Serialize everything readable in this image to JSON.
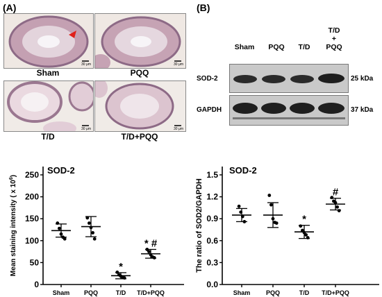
{
  "panel_a": {
    "label": "(A)",
    "images": [
      {
        "label": "Sham",
        "scale": "30 μm"
      },
      {
        "label": "PQQ",
        "scale": "30 μm"
      },
      {
        "label": "T/D",
        "scale": "30 μm"
      },
      {
        "label": "T/D+PQQ",
        "scale": "30 μm"
      }
    ]
  },
  "panel_b": {
    "label": "(B)",
    "lanes": [
      {
        "line1": "Sham",
        "line2": "",
        "line3": ""
      },
      {
        "line1": "PQQ",
        "line2": "",
        "line3": ""
      },
      {
        "line1": "T/D",
        "line2": "",
        "line3": ""
      },
      {
        "line1": "T/D",
        "line2": "+",
        "line3": "PQQ"
      }
    ],
    "blots": [
      {
        "protein": "SOD-2",
        "size": "25 kDa"
      },
      {
        "protein": "GAPDH",
        "size": "37 kDa"
      }
    ]
  },
  "colors": {
    "stain_bg": "#f2ede8",
    "tubule": "#b98aa0",
    "nuclei": "#5c4a8a",
    "blot_band": "#2a2a2a"
  },
  "chart_data": [
    {
      "type": "scatter",
      "subtype": "dot plot with mean ± SD",
      "title": "SOD-2",
      "xlabel": "",
      "ylabel": "Mean staining intensity ( x 10^6)",
      "ylabel_base": "Mean staining intensity ( x 10",
      "ylabel_exp": "6",
      "ylabel_end": ")",
      "categories": [
        "Sham",
        "PQQ",
        "T/D",
        "T/D+PQQ"
      ],
      "yticks": [
        "0",
        "50",
        "100",
        "150",
        "200",
        "250"
      ],
      "ylim": [
        0,
        250
      ],
      "mean": [
        123,
        132,
        20,
        70
      ],
      "sd": [
        15,
        23,
        7,
        10
      ],
      "points": [
        [
          140,
          128,
          115,
          108,
          104
        ],
        [
          152,
          140,
          130,
          118,
          104
        ],
        [
          28,
          22,
          19,
          17,
          15
        ],
        [
          80,
          75,
          68,
          63,
          61
        ]
      ],
      "annotations": [
        {
          "category": "T/D",
          "text": "*"
        },
        {
          "category": "T/D+PQQ",
          "text": "* #"
        }
      ]
    },
    {
      "type": "scatter",
      "subtype": "dot plot with mean ± SD",
      "title": "SOD-2",
      "xlabel": "",
      "ylabel": "The ratio of SOD2/GAPDH",
      "categories": [
        "Sham",
        "PQQ",
        "T/D",
        "T/D+PQQ"
      ],
      "yticks": [
        "0.0",
        "0.3",
        "0.6",
        "0.9",
        "1.2",
        "1.5"
      ],
      "ylim": [
        0,
        1.5
      ],
      "mean": [
        0.95,
        0.95,
        0.72,
        1.1
      ],
      "sd": [
        0.09,
        0.17,
        0.09,
        0.08
      ],
      "points": [
        [
          1.07,
          0.99,
          0.93,
          0.86
        ],
        [
          1.22,
          1.09,
          0.9,
          0.85,
          0.84
        ],
        [
          0.8,
          0.74,
          0.71,
          0.68,
          0.64
        ],
        [
          1.19,
          1.14,
          1.12,
          1.06,
          1.01
        ]
      ],
      "annotations": [
        {
          "category": "T/D",
          "text": "*"
        },
        {
          "category": "T/D+PQQ",
          "text": "#"
        }
      ]
    }
  ]
}
